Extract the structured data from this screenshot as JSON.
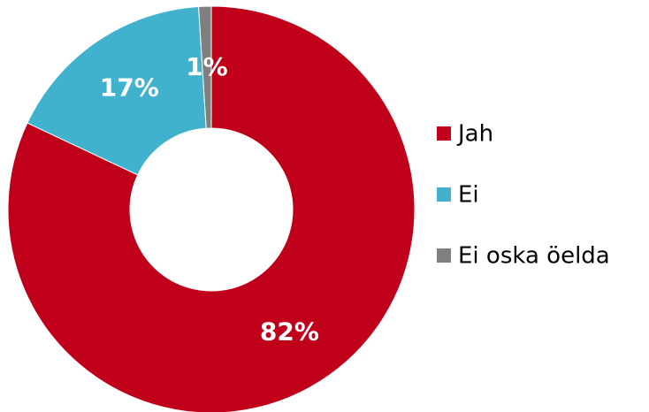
{
  "chart_data": {
    "type": "pie",
    "categories": [
      "Jah",
      "Ei",
      "Ei oska öelda"
    ],
    "values": [
      82,
      17,
      1
    ],
    "value_labels": [
      "82%",
      "17%",
      "1%"
    ],
    "colors": [
      "#c0001a",
      "#40b2cd",
      "#7f7f7f"
    ],
    "donut": true,
    "legend": "right"
  }
}
